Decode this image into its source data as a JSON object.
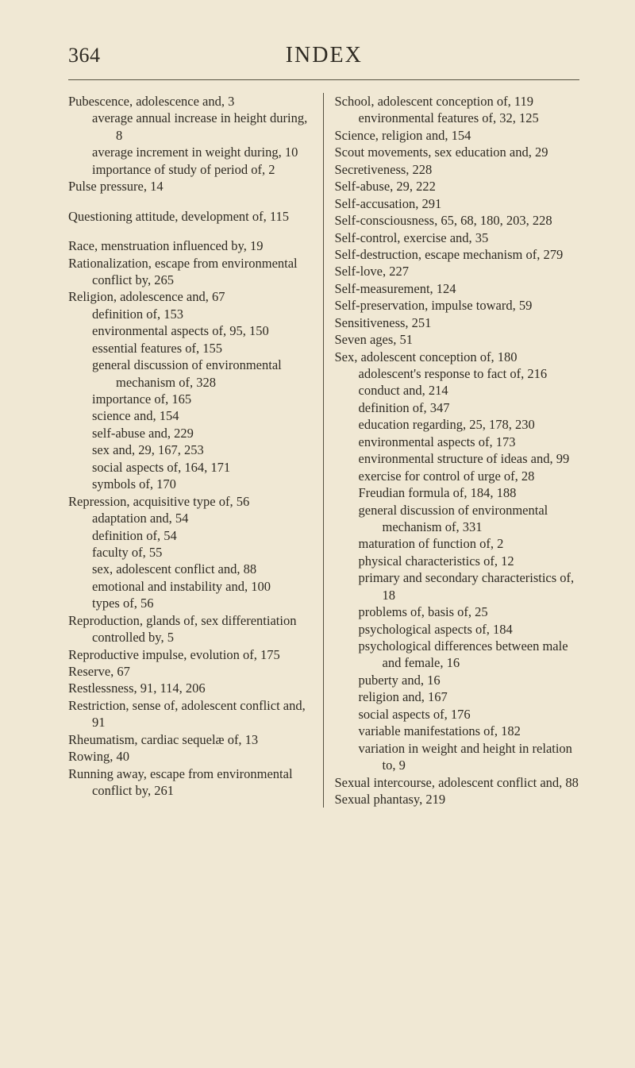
{
  "header": {
    "pageNumber": "364",
    "title": "INDEX"
  },
  "left": [
    {
      "t": "entry",
      "text": "Pubescence, adolescence and, 3"
    },
    {
      "t": "sub",
      "text": "average annual increase in height during, 8"
    },
    {
      "t": "sub",
      "text": "average increment in weight during, 10"
    },
    {
      "t": "sub",
      "text": "importance of study of period of, 2"
    },
    {
      "t": "entry",
      "text": "Pulse pressure, 14"
    },
    {
      "t": "gap"
    },
    {
      "t": "entry",
      "text": "Questioning attitude, development of, 115"
    },
    {
      "t": "gap"
    },
    {
      "t": "entry",
      "text": "Race, menstruation influenced by, 19"
    },
    {
      "t": "entry",
      "text": "Rationalization, escape from environmental conflict by, 265"
    },
    {
      "t": "entry",
      "text": "Religion, adolescence and, 67"
    },
    {
      "t": "sub",
      "text": "definition of, 153"
    },
    {
      "t": "sub",
      "text": "environmental aspects of, 95, 150"
    },
    {
      "t": "sub",
      "text": "essential features of, 155"
    },
    {
      "t": "sub",
      "text": "general discussion of environmental mechanism of, 328"
    },
    {
      "t": "sub",
      "text": "importance of, 165"
    },
    {
      "t": "sub",
      "text": "science and, 154"
    },
    {
      "t": "sub",
      "text": "self-abuse and, 229"
    },
    {
      "t": "sub",
      "text": "sex and, 29, 167, 253"
    },
    {
      "t": "sub",
      "text": "social aspects of, 164, 171"
    },
    {
      "t": "sub",
      "text": "symbols of, 170"
    },
    {
      "t": "entry",
      "text": "Repression, acquisitive type of, 56"
    },
    {
      "t": "sub",
      "text": "adaptation and, 54"
    },
    {
      "t": "sub",
      "text": "definition of, 54"
    },
    {
      "t": "sub",
      "text": "faculty of, 55"
    },
    {
      "t": "sub",
      "text": "sex, adolescent conflict and, 88"
    },
    {
      "t": "sub",
      "text": "emotional and instability and, 100"
    },
    {
      "t": "sub",
      "text": "types of, 56"
    },
    {
      "t": "entry",
      "text": "Reproduction, glands of, sex differentiation controlled by, 5"
    },
    {
      "t": "entry",
      "text": "Reproductive impulse, evolution of, 175"
    },
    {
      "t": "entry",
      "text": "Reserve, 67"
    },
    {
      "t": "entry",
      "text": "Restlessness, 91, 114, 206"
    },
    {
      "t": "entry",
      "text": "Restriction, sense of, adolescent conflict and, 91"
    },
    {
      "t": "entry",
      "text": "Rheumatism, cardiac sequelæ of, 13"
    },
    {
      "t": "entry",
      "text": "Rowing, 40"
    },
    {
      "t": "entry",
      "text": "Running away, escape from environmental conflict by, 261"
    }
  ],
  "right": [
    {
      "t": "entry",
      "text": "School, adolescent conception of, 119"
    },
    {
      "t": "sub",
      "text": "environmental features of, 32, 125"
    },
    {
      "t": "entry",
      "text": "Science, religion and, 154"
    },
    {
      "t": "entry",
      "text": "Scout movements, sex education and, 29"
    },
    {
      "t": "entry",
      "text": "Secretiveness, 228"
    },
    {
      "t": "entry",
      "text": "Self-abuse, 29, 222"
    },
    {
      "t": "entry",
      "text": "Self-accusation, 291"
    },
    {
      "t": "entry",
      "text": "Self-consciousness, 65, 68, 180, 203, 228"
    },
    {
      "t": "entry",
      "text": "Self-control, exercise and, 35"
    },
    {
      "t": "entry",
      "text": "Self-destruction, escape mechanism of, 279"
    },
    {
      "t": "entry",
      "text": "Self-love, 227"
    },
    {
      "t": "entry",
      "text": "Self-measurement, 124"
    },
    {
      "t": "entry",
      "text": "Self-preservation, impulse toward, 59"
    },
    {
      "t": "entry",
      "text": "Sensitiveness, 251"
    },
    {
      "t": "entry",
      "text": "Seven ages, 51"
    },
    {
      "t": "entry",
      "text": "Sex, adolescent conception of, 180"
    },
    {
      "t": "sub",
      "text": "adolescent's response to fact of, 216"
    },
    {
      "t": "sub",
      "text": "conduct and, 214"
    },
    {
      "t": "sub",
      "text": "definition of, 347"
    },
    {
      "t": "sub",
      "text": "education regarding, 25, 178, 230"
    },
    {
      "t": "sub",
      "text": "environmental aspects of, 173"
    },
    {
      "t": "sub",
      "text": "environmental structure of ideas and, 99"
    },
    {
      "t": "sub",
      "text": "exercise for control of urge of, 28"
    },
    {
      "t": "sub",
      "text": "Freudian formula of, 184, 188"
    },
    {
      "t": "sub",
      "text": "general discussion of environmental mechanism of, 331"
    },
    {
      "t": "sub",
      "text": "maturation of function of, 2"
    },
    {
      "t": "sub",
      "text": "physical characteristics of, 12"
    },
    {
      "t": "sub",
      "text": "primary and secondary characteristics of, 18"
    },
    {
      "t": "sub",
      "text": "problems of, basis of, 25"
    },
    {
      "t": "sub",
      "text": "psychological aspects of, 184"
    },
    {
      "t": "sub",
      "text": "psychological differences between male and female, 16"
    },
    {
      "t": "sub",
      "text": "puberty and, 16"
    },
    {
      "t": "sub",
      "text": "religion and, 167"
    },
    {
      "t": "sub",
      "text": "social aspects of, 176"
    },
    {
      "t": "sub",
      "text": "variable manifestations of, 182"
    },
    {
      "t": "sub",
      "text": "variation in weight and height in relation to, 9"
    },
    {
      "t": "entry",
      "text": "Sexual intercourse, adolescent conflict and, 88"
    },
    {
      "t": "entry",
      "text": "Sexual phantasy, 219"
    }
  ]
}
